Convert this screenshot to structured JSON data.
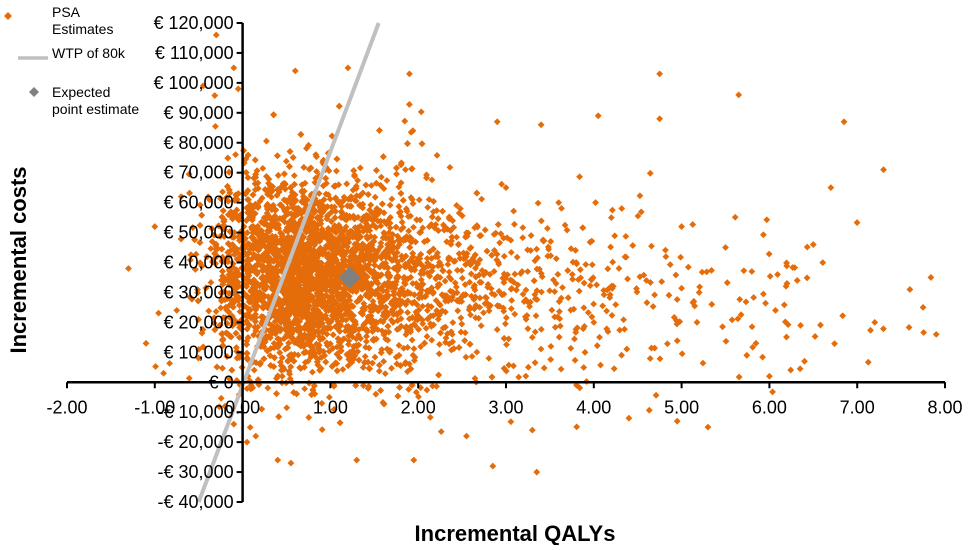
{
  "chart_data": {
    "type": "scatter",
    "title": "",
    "xlabel": "Incremental QALYs",
    "ylabel": "Incremental costs",
    "xlim": [
      -2,
      8
    ],
    "ylim": [
      -40000,
      120000
    ],
    "x_ticks": [
      -2,
      -1,
      0,
      1,
      2,
      3,
      4,
      5,
      6,
      7,
      8
    ],
    "x_tick_labels": [
      "-2.00",
      "-1.00",
      "0.00",
      "1.00",
      "2.00",
      "3.00",
      "4.00",
      "5.00",
      "6.00",
      "7.00",
      "8.00"
    ],
    "y_ticks": [
      -40000,
      -30000,
      -20000,
      -10000,
      0,
      10000,
      20000,
      30000,
      40000,
      50000,
      60000,
      70000,
      80000,
      90000,
      100000,
      110000,
      120000
    ],
    "y_tick_labels": [
      "-€ 40,000",
      "-€ 30,000",
      "-€ 20,000",
      "-€ 10,000",
      "€ 0",
      "€ 10,000",
      "€ 20,000",
      "€ 30,000",
      "€ 40,000",
      "€ 50,000",
      "€ 60,000",
      "€ 70,000",
      "€ 80,000",
      "€ 90,000",
      "€ 100,000",
      "€ 110,000",
      "€ 120,000"
    ],
    "grid": false,
    "legend_position": "top-left",
    "series": [
      {
        "name": "PSA Estimates",
        "kind": "scatter",
        "marker": "diamond",
        "color": "#E46C0A",
        "points": [
          [
            -0.3,
            116000
          ],
          [
            -0.1,
            105000
          ],
          [
            0.6,
            104000
          ],
          [
            1.9,
            103000
          ],
          [
            4.75,
            103000
          ],
          [
            5.65,
            96000
          ],
          [
            -0.45,
            99000
          ],
          [
            -0.05,
            98000
          ],
          [
            2.9,
            87000
          ],
          [
            3.4,
            86000
          ],
          [
            4.05,
            89000
          ],
          [
            4.75,
            88000
          ],
          [
            6.85,
            87000
          ],
          [
            1.2,
            105000
          ],
          [
            -1.3,
            38000
          ],
          [
            -1.0,
            52000
          ],
          [
            -1.1,
            13000
          ],
          [
            -0.9,
            3000
          ],
          [
            -0.75,
            24000
          ],
          [
            -0.7,
            62000
          ],
          [
            7.3,
            71000
          ],
          [
            7.6,
            31000
          ],
          [
            7.75,
            25000
          ],
          [
            7.9,
            16000
          ],
          [
            7.2,
            20000
          ],
          [
            6.7,
            65000
          ],
          [
            6.5,
            46000
          ],
          [
            6.2,
            33000
          ],
          [
            6.4,
            7000
          ],
          [
            6.0,
            2000
          ],
          [
            5.3,
            -15000
          ],
          [
            4.95,
            -13000
          ],
          [
            4.4,
            -12000
          ],
          [
            3.3,
            -16000
          ],
          [
            3.35,
            -30000
          ],
          [
            2.85,
            -28000
          ],
          [
            2.55,
            -18000
          ],
          [
            1.95,
            -26000
          ],
          [
            1.3,
            -26000
          ],
          [
            0.55,
            -27000
          ],
          [
            0.4,
            -26000
          ],
          [
            0.15,
            -18000
          ],
          [
            0.05,
            -20000
          ],
          [
            -0.2,
            -8000
          ],
          [
            -0.1,
            -14000
          ],
          [
            3.6,
            60000
          ],
          [
            4.2,
            55000
          ],
          [
            5.0,
            52000
          ],
          [
            5.5,
            45000
          ],
          [
            5.8,
            37000
          ],
          [
            3.0,
            65000
          ],
          [
            2.6,
            45000
          ],
          [
            2.3,
            52000
          ],
          [
            3.8,
            40000
          ],
          [
            4.6,
            34000
          ],
          [
            5.2,
            30000
          ],
          [
            4.0,
            20000
          ],
          [
            3.3,
            15000
          ],
          [
            2.7,
            25000
          ],
          [
            3.9,
            10000
          ]
        ]
      },
      {
        "name": "WTP of 80k",
        "kind": "line",
        "color": "#C0C0C0",
        "points": [
          [
            -0.5,
            -40000
          ],
          [
            1.55,
            124000
          ]
        ]
      },
      {
        "name": "Expected point estimate",
        "kind": "scatter",
        "marker": "diamond",
        "color": "#808080",
        "points": [
          [
            1.22,
            35000
          ]
        ]
      }
    ]
  }
}
